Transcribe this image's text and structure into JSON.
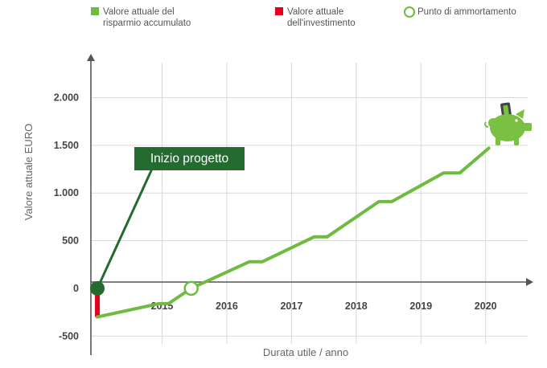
{
  "legend": {
    "savings": {
      "label": "Valore attuale del\nrisparmio accumulato",
      "color": "#6dbb3f"
    },
    "investment": {
      "label": "Valore attuale\ndell'investimento",
      "color": "#e2001a"
    },
    "breakeven": {
      "label": "Punto di ammortamento",
      "color": "#6dbb3f"
    }
  },
  "annotation": {
    "label": "Inizio progetto",
    "color": "#246b2f"
  },
  "icons": {
    "savings_end": "piggy-bank-icon"
  },
  "chart_data": {
    "type": "line",
    "ylabel": "Valore attuale  EURO",
    "xlabel": "Durata utile / anno",
    "ylim": [
      -700,
      2400
    ],
    "xlim": [
      2013.9,
      2020.65
    ],
    "grid": true,
    "x_ticks": [
      2015,
      2016,
      2017,
      2018,
      2019,
      2020
    ],
    "y_ticks": [
      -500,
      0,
      500,
      1000,
      1500,
      2000
    ],
    "y_tick_labels": [
      "-500",
      "0",
      "500",
      "1.000",
      "1.500",
      "2.000"
    ],
    "series": [
      {
        "name": "Valore attuale del risparmio accumulato",
        "color": "#6dbb3f",
        "x": [
          2014.0,
          2014.95,
          2015.1,
          2015.45,
          2016.35,
          2016.55,
          2017.35,
          2017.55,
          2018.35,
          2018.55,
          2019.35,
          2019.6,
          2020.05
        ],
        "y": [
          -300,
          -160,
          -160,
          0,
          280,
          280,
          540,
          540,
          910,
          910,
          1210,
          1210,
          1470
        ]
      },
      {
        "name": "Valore attuale dell'investimento",
        "color": "#e2001a",
        "x": [
          2014.0,
          2014.0
        ],
        "y": [
          0,
          -300
        ]
      }
    ],
    "markers": [
      {
        "name": "Inizio progetto",
        "x": 2014.0,
        "y": 0
      },
      {
        "name": "Punto di ammortamento",
        "x": 2015.45,
        "y": 0
      }
    ]
  }
}
